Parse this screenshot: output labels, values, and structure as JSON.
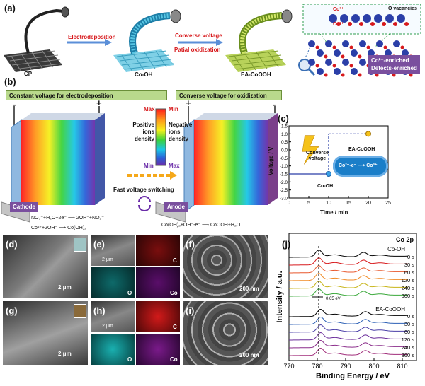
{
  "panel_a": {
    "label": "(a)",
    "cp": "CP",
    "step1": "Electrodeposition",
    "coh": "Co-OH",
    "step2_line1": "Converse voltage",
    "step2_line2": "Patial oxidization",
    "ea": "EA-CoOOH",
    "co3": "Co³⁺",
    "ovac": "O vacancies",
    "co2": "Co²⁺",
    "enriched_line1": "Co²⁺-enriched",
    "enriched_line2": "Defects-enriched"
  },
  "panel_b": {
    "label": "(b)",
    "left_header": "Constant voltage for electrodeposition",
    "right_header": "Converse voltage for oxidization",
    "minus": "-",
    "plus": "+",
    "max": "Max",
    "min": "Min",
    "positive_ions_line1": "Positive",
    "positive_ions_line2": "ions",
    "positive_ions_line3": "density",
    "negative_ions_line1": "Negative",
    "negative_ions_line2": "ions",
    "negative_ions_line3": "density",
    "fast_switch": "Fast voltage switching",
    "cathode": "Cathode",
    "anode": "Anode",
    "eq1": "NO₃⁻+H₂O+2e⁻ ⟶ 2OH⁻+NO₂⁻",
    "eq2": "Co²⁺+2OH⁻ ⟶ Co(OH)₂",
    "eq3": "Co(OH)₂+OH⁻-e⁻ ⟶ CoOOH+H₂O"
  },
  "panel_c": {
    "label": "(c)",
    "ylabel": "Voltage / V",
    "xlabel": "Time / min",
    "converse_line1": "Converse",
    "converse_line2": "voltage",
    "coh": "Co-OH",
    "ea": "EA-CoOOH",
    "cloud_text": "Co²⁺-e⁻ ⟶ Co³⁺"
  },
  "chart_data": [
    {
      "type": "line",
      "id": "voltage-time",
      "xlabel": "Time / min",
      "ylabel": "Voltage / V",
      "xlim": [
        0,
        25
      ],
      "ylim": [
        -3.0,
        1.5
      ],
      "xticks": [
        0,
        5,
        10,
        15,
        20,
        25
      ],
      "yticks": [
        -3.0,
        -2.5,
        -2.0,
        -1.5,
        -1.0,
        -0.5,
        0.0,
        0.5,
        1.0,
        1.5
      ],
      "series": [
        {
          "x": [
            0,
            10,
            10,
            20
          ],
          "y": [
            -1.5,
            -1.5,
            1.0,
            1.0
          ]
        }
      ],
      "markers": [
        {
          "x": 10,
          "y": -1.5,
          "text": "Co-OH"
        },
        {
          "x": 20,
          "y": 1.0,
          "text": "EA-CoOOH"
        }
      ]
    },
    {
      "type": "line",
      "id": "xps-co2p",
      "title": "Co 2p",
      "xlabel": "Binding Energy / eV",
      "ylabel": "Intensity / a.u.",
      "xlim": [
        770,
        815
      ],
      "xticks": [
        770,
        780,
        790,
        800,
        810
      ],
      "group_labels": [
        "Co-OH",
        "EA-CoOOH"
      ],
      "shift_label": "0.65 eV",
      "series": [
        {
          "name": "0 s",
          "group": "Co-OH",
          "color": "#000000"
        },
        {
          "name": "30 s",
          "group": "Co-OH",
          "color": "#d7191c"
        },
        {
          "name": "60 s",
          "group": "Co-OH",
          "color": "#e8572c"
        },
        {
          "name": "120 s",
          "group": "Co-OH",
          "color": "#f08a24"
        },
        {
          "name": "240 s",
          "group": "Co-OH",
          "color": "#c7b416"
        },
        {
          "name": "360 s",
          "group": "Co-OH",
          "color": "#39a839"
        },
        {
          "name": "0 s",
          "group": "EA-CoOOH",
          "color": "#000000"
        },
        {
          "name": "30 s",
          "group": "EA-CoOOH",
          "color": "#2b5fb5"
        },
        {
          "name": "60 s",
          "group": "EA-CoOOH",
          "color": "#4a3fa8"
        },
        {
          "name": "120 s",
          "group": "EA-CoOOH",
          "color": "#6a2c9a"
        },
        {
          "name": "240 s",
          "group": "EA-CoOOH",
          "color": "#8a2c8a"
        },
        {
          "name": "360 s",
          "group": "EA-CoOOH",
          "color": "#a02c7a"
        }
      ]
    }
  ],
  "panel_sem": {
    "d": "(d)",
    "e": "(e)",
    "f": "(f)",
    "g": "(g)",
    "h": "(h)",
    "i": "(i)",
    "j": "(j)",
    "scale_2um": "2 μm",
    "scale_200nm": "200 nm",
    "map_c": "C",
    "map_o": "O",
    "map_co": "Co"
  },
  "colors": {
    "arrow": "#d7191c",
    "header_bg": "#b9d98c",
    "tag_purple": "#7a4f9e",
    "co_blue": "#2b3fa8",
    "o_red": "#d7191c"
  }
}
